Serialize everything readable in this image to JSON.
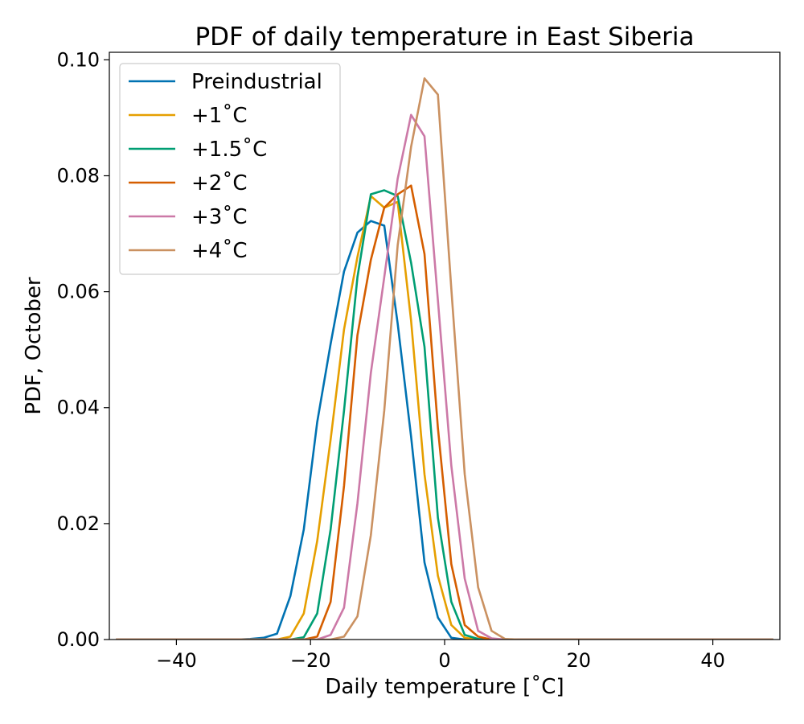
{
  "chart_data": {
    "type": "line",
    "title": "PDF of daily temperature in East Siberia",
    "xlabel": "Daily temperature [˚C]",
    "ylabel": "PDF, October",
    "xlim": [
      -50,
      50
    ],
    "ylim": [
      0,
      0.1013
    ],
    "xticks": [
      -40,
      -20,
      0,
      20,
      40
    ],
    "xtick_labels": [
      "−40",
      "−20",
      "0",
      "20",
      "40"
    ],
    "yticks": [
      0,
      0.02,
      0.04,
      0.06,
      0.08,
      0.1
    ],
    "ytick_labels": [
      "0.00",
      "0.02",
      "0.04",
      "0.06",
      "0.08",
      "0.10"
    ],
    "grid": false,
    "legend_position": "top-left",
    "x": [
      -49,
      -47,
      -45,
      -43,
      -41,
      -39,
      -37,
      -35,
      -33,
      -31,
      -29,
      -27,
      -25,
      -23,
      -21,
      -19,
      -17,
      -15,
      -13,
      -11,
      -9,
      -7,
      -5,
      -3,
      -1,
      1,
      3,
      5,
      7,
      9,
      11,
      13,
      15,
      17,
      19,
      21,
      23,
      25,
      27,
      29,
      31,
      33,
      35,
      37,
      39,
      41,
      43,
      45,
      47,
      49
    ],
    "series": [
      {
        "name": "Preindustrial",
        "color": "#0072b2",
        "values": [
          0,
          0,
          0,
          0,
          0,
          0,
          0,
          0,
          0,
          0,
          0.0001,
          0.0003,
          0.001,
          0.0075,
          0.019,
          0.0375,
          0.051,
          0.0635,
          0.0702,
          0.0722,
          0.0714,
          0.0545,
          0.035,
          0.0133,
          0.0038,
          0.0003,
          0,
          0,
          0,
          0,
          0,
          0,
          0,
          0,
          0,
          0,
          0,
          0,
          0,
          0,
          0,
          0,
          0,
          0,
          0,
          0,
          0,
          0,
          0,
          0
        ]
      },
      {
        "name": "+1˚C",
        "color": "#e69f00",
        "values": [
          0,
          0,
          0,
          0,
          0,
          0,
          0,
          0,
          0,
          0,
          0,
          0,
          0,
          0.0005,
          0.0045,
          0.017,
          0.0345,
          0.0535,
          0.066,
          0.0765,
          0.0745,
          0.0755,
          0.055,
          0.0285,
          0.011,
          0.0025,
          0.0003,
          0,
          0,
          0,
          0,
          0,
          0,
          0,
          0,
          0,
          0,
          0,
          0,
          0,
          0,
          0,
          0,
          0,
          0,
          0,
          0,
          0,
          0,
          0
        ]
      },
      {
        "name": "+1.5˚C",
        "color": "#009e73",
        "values": [
          0,
          0,
          0,
          0,
          0,
          0,
          0,
          0,
          0,
          0,
          0,
          0,
          0,
          0,
          0.0004,
          0.0045,
          0.019,
          0.0395,
          0.0625,
          0.0768,
          0.0775,
          0.0765,
          0.065,
          0.0505,
          0.021,
          0.0065,
          0.0008,
          0.0001,
          0,
          0,
          0,
          0,
          0,
          0,
          0,
          0,
          0,
          0,
          0,
          0,
          0,
          0,
          0,
          0,
          0,
          0,
          0,
          0,
          0,
          0
        ]
      },
      {
        "name": "+2˚C",
        "color": "#d55e00",
        "values": [
          0,
          0,
          0,
          0,
          0,
          0,
          0,
          0,
          0,
          0,
          0,
          0,
          0,
          0,
          0,
          0.0005,
          0.0065,
          0.0265,
          0.0525,
          0.0655,
          0.0745,
          0.0768,
          0.0783,
          0.0665,
          0.0365,
          0.013,
          0.0025,
          0.0005,
          0,
          0,
          0,
          0,
          0,
          0,
          0,
          0,
          0,
          0,
          0,
          0,
          0,
          0,
          0,
          0,
          0,
          0,
          0,
          0,
          0,
          0
        ]
      },
      {
        "name": "+3˚C",
        "color": "#cc79a7",
        "values": [
          0,
          0,
          0,
          0,
          0,
          0,
          0,
          0,
          0,
          0,
          0,
          0,
          0,
          0,
          0,
          0,
          0.0008,
          0.0055,
          0.0235,
          0.046,
          0.0625,
          0.0795,
          0.0905,
          0.0868,
          0.0585,
          0.03,
          0.0105,
          0.0015,
          0.0002,
          0,
          0,
          0,
          0,
          0,
          0,
          0,
          0,
          0,
          0,
          0,
          0,
          0,
          0,
          0,
          0,
          0,
          0,
          0,
          0,
          0
        ]
      },
      {
        "name": "+4˚C",
        "color": "#ca9161",
        "values": [
          0,
          0,
          0,
          0,
          0,
          0,
          0,
          0,
          0,
          0,
          0,
          0,
          0,
          0,
          0,
          0,
          0,
          0.0005,
          0.004,
          0.018,
          0.0395,
          0.068,
          0.085,
          0.0968,
          0.094,
          0.0605,
          0.0285,
          0.009,
          0.0015,
          0.0001,
          0,
          0,
          0,
          0,
          0,
          0,
          0,
          0,
          0,
          0,
          0,
          0,
          0,
          0,
          0,
          0,
          0,
          0,
          0,
          0
        ]
      }
    ]
  }
}
